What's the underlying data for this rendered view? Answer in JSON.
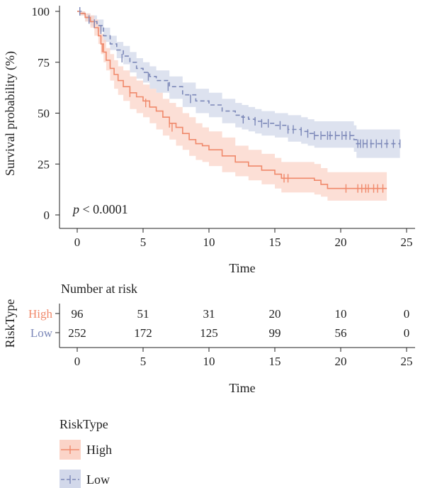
{
  "chart_data": [
    {
      "type": "line",
      "subtype": "kaplan-meier",
      "title": "",
      "xlabel": "Time",
      "ylabel": "Survival probability (%)",
      "xlim": [
        0,
        25
      ],
      "ylim": [
        0,
        100
      ],
      "x_ticks": [
        0,
        5,
        10,
        15,
        20,
        25
      ],
      "y_ticks": [
        0,
        25,
        50,
        75,
        100
      ],
      "annotation": {
        "p_label": "p",
        "p_rest": " < 0.0001"
      },
      "grid": false,
      "confidence_bands": true,
      "series": [
        {
          "name": "High",
          "color": "#F0896B",
          "band_color": "#FBD4C8",
          "points": [
            [
              0,
              100
            ],
            [
              0.2,
              99
            ],
            [
              0.6,
              97
            ],
            [
              1.0,
              95
            ],
            [
              1.3,
              92
            ],
            [
              1.6,
              88
            ],
            [
              1.8,
              84
            ],
            [
              2.0,
              80
            ],
            [
              2.2,
              76
            ],
            [
              2.5,
              72
            ],
            [
              2.8,
              69
            ],
            [
              3.1,
              66
            ],
            [
              3.5,
              63
            ],
            [
              4.0,
              60
            ],
            [
              4.5,
              58
            ],
            [
              5.0,
              56
            ],
            [
              5.5,
              53
            ],
            [
              6.0,
              51
            ],
            [
              6.5,
              48
            ],
            [
              7.0,
              45
            ],
            [
              7.5,
              43
            ],
            [
              8.0,
              40
            ],
            [
              8.5,
              37
            ],
            [
              9.0,
              35
            ],
            [
              9.5,
              34
            ],
            [
              10.0,
              32
            ],
            [
              11.0,
              29
            ],
            [
              12.0,
              26
            ],
            [
              13.0,
              24
            ],
            [
              14.0,
              22
            ],
            [
              15.0,
              20
            ],
            [
              15.5,
              18
            ],
            [
              16.0,
              18
            ],
            [
              17.0,
              18
            ],
            [
              18.0,
              17
            ],
            [
              18.5,
              15
            ],
            [
              19.0,
              13
            ],
            [
              20.0,
              13
            ],
            [
              21.0,
              13
            ],
            [
              22.0,
              13
            ],
            [
              23.5,
              13
            ]
          ],
          "band_low": [
            100,
            98,
            95,
            92,
            88,
            84,
            79,
            75,
            71,
            66,
            62,
            59,
            56,
            52,
            50,
            48,
            45,
            42,
            39,
            37,
            34,
            32,
            29,
            27,
            26,
            24,
            21,
            19,
            17,
            15,
            13,
            11,
            11,
            11,
            10,
            9,
            7,
            7,
            7,
            7,
            7
          ],
          "band_high": [
            100,
            100,
            99,
            98,
            96,
            93,
            89,
            86,
            82,
            79,
            76,
            73,
            71,
            68,
            66,
            64,
            62,
            60,
            57,
            55,
            53,
            50,
            48,
            45,
            43,
            41,
            38,
            34,
            32,
            30,
            28,
            26,
            26,
            26,
            25,
            23,
            21,
            21,
            21,
            21,
            21
          ],
          "censor_x": [
            1.9,
            4.0,
            5.2,
            7.0,
            7.2,
            15.7,
            16.0,
            20.4,
            21.3,
            21.6,
            21.9,
            22.1,
            22.5,
            22.8,
            23.2
          ],
          "censor_y": [
            82,
            60,
            55,
            45,
            43,
            18,
            18,
            13,
            13,
            13,
            13,
            13,
            13,
            13,
            13
          ]
        },
        {
          "name": "Low",
          "color": "#7C88B8",
          "band_color": "#D2D8EA",
          "points": [
            [
              0,
              100
            ],
            [
              0.3,
              99
            ],
            [
              0.6,
              97
            ],
            [
              1.0,
              95
            ],
            [
              1.5,
              93
            ],
            [
              2.0,
              88
            ],
            [
              2.5,
              84
            ],
            [
              3.0,
              81
            ],
            [
              3.5,
              78
            ],
            [
              4.0,
              75
            ],
            [
              4.5,
              72
            ],
            [
              5.0,
              70
            ],
            [
              5.5,
              68
            ],
            [
              6.0,
              66
            ],
            [
              7.0,
              63
            ],
            [
              8.0,
              59
            ],
            [
              9.0,
              56
            ],
            [
              10.0,
              54
            ],
            [
              11.0,
              51
            ],
            [
              12.0,
              49
            ],
            [
              12.5,
              48
            ],
            [
              13.0,
              47
            ],
            [
              13.5,
              46
            ],
            [
              14.0,
              45
            ],
            [
              15.0,
              44
            ],
            [
              16.0,
              42
            ],
            [
              17.0,
              41
            ],
            [
              17.5,
              40
            ],
            [
              18.0,
              39
            ],
            [
              19.0,
              39
            ],
            [
              20.0,
              39
            ],
            [
              21.0,
              37
            ],
            [
              21.2,
              35
            ],
            [
              22.0,
              35
            ],
            [
              23.0,
              35
            ],
            [
              24.5,
              35
            ]
          ],
          "band_low": [
            100,
            98,
            95,
            93,
            90,
            85,
            81,
            77,
            74,
            70,
            67,
            65,
            62,
            60,
            57,
            53,
            50,
            48,
            45,
            43,
            42,
            41,
            40,
            39,
            38,
            36,
            35,
            34,
            33,
            33,
            33,
            31,
            28,
            28,
            28,
            28
          ],
          "band_high": [
            100,
            100,
            99,
            98,
            96,
            92,
            88,
            85,
            83,
            80,
            77,
            75,
            73,
            71,
            68,
            65,
            62,
            60,
            57,
            55,
            54,
            53,
            52,
            51,
            50,
            49,
            48,
            47,
            46,
            46,
            46,
            44,
            42,
            42,
            42,
            42
          ],
          "censor_x": [
            0.2,
            0.9,
            1.3,
            1.8,
            3.4,
            5.4,
            6.9,
            8.6,
            12.6,
            13.5,
            14.0,
            14.5,
            15.4,
            16.0,
            16.4,
            17.0,
            17.5,
            18.0,
            18.5,
            19.0,
            19.2,
            19.6,
            20.1,
            20.4,
            20.7,
            21.3,
            21.5,
            21.7,
            22.0,
            22.3,
            22.7,
            23.1,
            23.5,
            24.0,
            24.5
          ],
          "censor_y": [
            100,
            96,
            94,
            91,
            77,
            68,
            63,
            57,
            47,
            46,
            45,
            45,
            44,
            42,
            42,
            41,
            40,
            39,
            39,
            39,
            39,
            39,
            39,
            39,
            39,
            35,
            35,
            35,
            35,
            35,
            35,
            35,
            35,
            35,
            35
          ]
        }
      ]
    },
    {
      "type": "table",
      "title": "Number at risk",
      "xlabel": "Time",
      "ylabel": "RiskType",
      "x_ticks": [
        0,
        5,
        10,
        15,
        20,
        25
      ],
      "rows": [
        {
          "name": "High",
          "color": "#F0896B",
          "values": [
            96,
            51,
            31,
            20,
            10,
            0
          ]
        },
        {
          "name": "Low",
          "color": "#7C88B8",
          "values": [
            252,
            172,
            125,
            99,
            56,
            0
          ]
        }
      ]
    }
  ],
  "legend": {
    "title": "RiskType",
    "items": [
      {
        "label": "High",
        "color": "#F0896B",
        "fill": "#FBD4C8"
      },
      {
        "label": "Low",
        "color": "#7C88B8",
        "fill": "#D2D8EA"
      }
    ]
  }
}
